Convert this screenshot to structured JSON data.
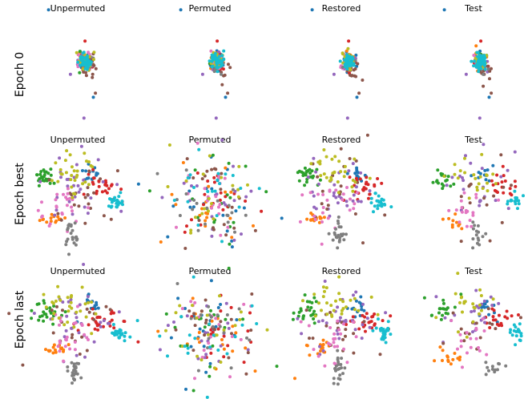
{
  "figure": {
    "rows": [
      {
        "label": "Epoch 0",
        "key": "epoch0"
      },
      {
        "label": "Epoch best",
        "key": "best"
      },
      {
        "label": "Epoch last",
        "key": "last"
      }
    ],
    "columns": [
      "Unpermuted",
      "Permuted",
      "Restored",
      "Test"
    ]
  },
  "chart_data": {
    "type": "scatter",
    "title": "",
    "xlabel": "",
    "ylabel": "",
    "axes_visible": false,
    "grid": false,
    "legend": "none",
    "class_colors": [
      "#1f77b4",
      "#ff7f0e",
      "#2ca02c",
      "#d62728",
      "#9467bd",
      "#8c564b",
      "#e377c2",
      "#7f7f7f",
      "#bcbd22",
      "#17becf"
    ],
    "xlim": [
      0,
      100
    ],
    "ylim": [
      0,
      100
    ],
    "layouts": {
      "epoch0": {
        "clusters": [
          {
            "class": 0,
            "cx": 57,
            "cy": 57,
            "sx": 3,
            "sy": 4,
            "n": 22
          },
          {
            "class": 1,
            "cx": 56,
            "cy": 58,
            "sx": 3,
            "sy": 4,
            "n": 15
          },
          {
            "class": 2,
            "cx": 56,
            "cy": 57,
            "sx": 3,
            "sy": 4,
            "n": 15
          },
          {
            "class": 3,
            "cx": 58,
            "cy": 55,
            "sx": 3,
            "sy": 4,
            "n": 15
          },
          {
            "class": 4,
            "cx": 56,
            "cy": 56,
            "sx": 3,
            "sy": 4,
            "n": 18
          },
          {
            "class": 5,
            "cx": 60,
            "cy": 49,
            "sx": 4,
            "sy": 6,
            "n": 14
          },
          {
            "class": 6,
            "cx": 55,
            "cy": 57,
            "sx": 3,
            "sy": 4,
            "n": 15
          },
          {
            "class": 7,
            "cx": 58,
            "cy": 55,
            "sx": 3,
            "sy": 4,
            "n": 10
          },
          {
            "class": 8,
            "cx": 57,
            "cy": 58,
            "sx": 3,
            "sy": 4,
            "n": 22
          },
          {
            "class": 9,
            "cx": 57,
            "cy": 56,
            "sx": 3,
            "sy": 4,
            "n": 45
          }
        ],
        "extra_points": [
          {
            "class": 0,
            "x": 22,
            "y": 106
          },
          {
            "class": 4,
            "x": 56,
            "y": 2
          },
          {
            "class": 3,
            "x": 57,
            "y": 76
          },
          {
            "class": 4,
            "x": 43,
            "y": 44
          },
          {
            "class": 0,
            "x": 65,
            "y": 22
          },
          {
            "class": 5,
            "x": 67,
            "y": 26
          }
        ]
      },
      "unpermuted_best": {
        "clusters": [
          {
            "class": 0,
            "cx": 63,
            "cy": 74,
            "sx": 5,
            "sy": 5,
            "n": 14
          },
          {
            "class": 1,
            "cx": 25,
            "cy": 30,
            "sx": 5,
            "sy": 3,
            "n": 14
          },
          {
            "class": 2,
            "cx": 17,
            "cy": 72,
            "sx": 6,
            "sy": 5,
            "n": 25
          },
          {
            "class": 3,
            "cx": 73,
            "cy": 62,
            "sx": 8,
            "sy": 6,
            "n": 25
          },
          {
            "class": 4,
            "cx": 50,
            "cy": 60,
            "sx": 20,
            "sy": 16,
            "n": 30
          },
          {
            "class": 5,
            "cx": 50,
            "cy": 52,
            "sx": 20,
            "sy": 18,
            "n": 20
          },
          {
            "class": 6,
            "cx": 38,
            "cy": 42,
            "sx": 12,
            "sy": 14,
            "n": 25
          },
          {
            "class": 7,
            "cx": 45,
            "cy": 15,
            "sx": 4,
            "sy": 8,
            "n": 22
          },
          {
            "class": 8,
            "cx": 45,
            "cy": 72,
            "sx": 14,
            "sy": 12,
            "n": 30
          },
          {
            "class": 9,
            "cx": 87,
            "cy": 47,
            "sx": 4,
            "sy": 4,
            "n": 22
          }
        ]
      },
      "permuted": {
        "clusters": [
          {
            "class": 0,
            "cx": 50,
            "cy": 50,
            "sx": 22,
            "sy": 20,
            "n": 20
          },
          {
            "class": 1,
            "cx": 50,
            "cy": 50,
            "sx": 22,
            "sy": 20,
            "n": 20
          },
          {
            "class": 2,
            "cx": 50,
            "cy": 50,
            "sx": 22,
            "sy": 20,
            "n": 20
          },
          {
            "class": 3,
            "cx": 50,
            "cy": 50,
            "sx": 22,
            "sy": 20,
            "n": 20
          },
          {
            "class": 4,
            "cx": 50,
            "cy": 50,
            "sx": 22,
            "sy": 20,
            "n": 20
          },
          {
            "class": 5,
            "cx": 50,
            "cy": 50,
            "sx": 22,
            "sy": 20,
            "n": 20
          },
          {
            "class": 6,
            "cx": 50,
            "cy": 50,
            "sx": 22,
            "sy": 20,
            "n": 20
          },
          {
            "class": 7,
            "cx": 50,
            "cy": 50,
            "sx": 22,
            "sy": 20,
            "n": 20
          },
          {
            "class": 8,
            "cx": 50,
            "cy": 50,
            "sx": 22,
            "sy": 20,
            "n": 20
          },
          {
            "class": 9,
            "cx": 50,
            "cy": 50,
            "sx": 22,
            "sy": 20,
            "n": 20
          }
        ]
      },
      "test_best": {
        "clusters": [
          {
            "class": 0,
            "cx": 60,
            "cy": 75,
            "sx": 6,
            "sy": 5,
            "n": 12
          },
          {
            "class": 1,
            "cx": 30,
            "cy": 25,
            "sx": 5,
            "sy": 5,
            "n": 10
          },
          {
            "class": 2,
            "cx": 22,
            "cy": 67,
            "sx": 6,
            "sy": 6,
            "n": 18
          },
          {
            "class": 3,
            "cx": 75,
            "cy": 62,
            "sx": 8,
            "sy": 6,
            "n": 18
          },
          {
            "class": 4,
            "cx": 50,
            "cy": 60,
            "sx": 18,
            "sy": 15,
            "n": 22
          },
          {
            "class": 5,
            "cx": 50,
            "cy": 52,
            "sx": 18,
            "sy": 16,
            "n": 15
          },
          {
            "class": 6,
            "cx": 45,
            "cy": 37,
            "sx": 10,
            "sy": 10,
            "n": 18
          },
          {
            "class": 7,
            "cx": 52,
            "cy": 16,
            "sx": 4,
            "sy": 7,
            "n": 15
          },
          {
            "class": 8,
            "cx": 42,
            "cy": 73,
            "sx": 14,
            "sy": 10,
            "n": 22
          },
          {
            "class": 9,
            "cx": 90,
            "cy": 48,
            "sx": 4,
            "sy": 4,
            "n": 16
          }
        ]
      },
      "unpermuted_last": {
        "clusters": [
          {
            "class": 0,
            "cx": 65,
            "cy": 72,
            "sx": 6,
            "sy": 6,
            "n": 14
          },
          {
            "class": 1,
            "cx": 30,
            "cy": 33,
            "sx": 6,
            "sy": 3,
            "n": 16
          },
          {
            "class": 2,
            "cx": 18,
            "cy": 68,
            "sx": 7,
            "sy": 6,
            "n": 25
          },
          {
            "class": 3,
            "cx": 72,
            "cy": 58,
            "sx": 9,
            "sy": 5,
            "n": 25
          },
          {
            "class": 4,
            "cx": 48,
            "cy": 60,
            "sx": 22,
            "sy": 17,
            "n": 30
          },
          {
            "class": 5,
            "cx": 50,
            "cy": 52,
            "sx": 20,
            "sy": 18,
            "n": 20
          },
          {
            "class": 6,
            "cx": 42,
            "cy": 40,
            "sx": 12,
            "sy": 14,
            "n": 25
          },
          {
            "class": 7,
            "cx": 47,
            "cy": 12,
            "sx": 3,
            "sy": 8,
            "n": 22
          },
          {
            "class": 8,
            "cx": 45,
            "cy": 74,
            "sx": 14,
            "sy": 12,
            "n": 30
          },
          {
            "class": 9,
            "cx": 90,
            "cy": 48,
            "sx": 4,
            "sy": 4,
            "n": 24
          }
        ]
      },
      "test_last": {
        "clusters": [
          {
            "class": 0,
            "cx": 62,
            "cy": 72,
            "sx": 6,
            "sy": 5,
            "n": 12
          },
          {
            "class": 1,
            "cx": 25,
            "cy": 25,
            "sx": 8,
            "sy": 6,
            "n": 14
          },
          {
            "class": 2,
            "cx": 20,
            "cy": 70,
            "sx": 7,
            "sy": 6,
            "n": 18
          },
          {
            "class": 3,
            "cx": 75,
            "cy": 62,
            "sx": 8,
            "sy": 6,
            "n": 18
          },
          {
            "class": 4,
            "cx": 50,
            "cy": 65,
            "sx": 18,
            "sy": 15,
            "n": 22
          },
          {
            "class": 5,
            "cx": 50,
            "cy": 52,
            "sx": 18,
            "sy": 16,
            "n": 15
          },
          {
            "class": 6,
            "cx": 42,
            "cy": 40,
            "sx": 12,
            "sy": 12,
            "n": 18
          },
          {
            "class": 7,
            "cx": 68,
            "cy": 12,
            "sx": 5,
            "sy": 5,
            "n": 12
          },
          {
            "class": 8,
            "cx": 45,
            "cy": 72,
            "sx": 14,
            "sy": 10,
            "n": 22
          },
          {
            "class": 9,
            "cx": 92,
            "cy": 47,
            "sx": 4,
            "sy": 4,
            "n": 18
          }
        ]
      }
    },
    "panels": [
      {
        "row": 0,
        "col": 0,
        "title": "Unpermuted",
        "layout": "epoch0",
        "seed": 11
      },
      {
        "row": 0,
        "col": 1,
        "title": "Permuted",
        "layout": "epoch0",
        "seed": 12
      },
      {
        "row": 0,
        "col": 2,
        "title": "Restored",
        "layout": "epoch0",
        "seed": 13
      },
      {
        "row": 0,
        "col": 3,
        "title": "Test",
        "layout": "epoch0",
        "seed": 14
      },
      {
        "row": 1,
        "col": 0,
        "title": "Unpermuted",
        "layout": "unpermuted_best",
        "seed": 21
      },
      {
        "row": 1,
        "col": 1,
        "title": "Permuted",
        "layout": "permuted",
        "seed": 22
      },
      {
        "row": 1,
        "col": 2,
        "title": "Restored",
        "layout": "unpermuted_best",
        "seed": 23
      },
      {
        "row": 1,
        "col": 3,
        "title": "Test",
        "layout": "test_best",
        "seed": 24
      },
      {
        "row": 2,
        "col": 0,
        "title": "Unpermuted",
        "layout": "unpermuted_last",
        "seed": 31
      },
      {
        "row": 2,
        "col": 1,
        "title": "Permuted",
        "layout": "permuted",
        "seed": 32
      },
      {
        "row": 2,
        "col": 2,
        "title": "Restored",
        "layout": "unpermuted_last",
        "seed": 33
      },
      {
        "row": 2,
        "col": 3,
        "title": "Test",
        "layout": "test_last",
        "seed": 34
      }
    ]
  }
}
